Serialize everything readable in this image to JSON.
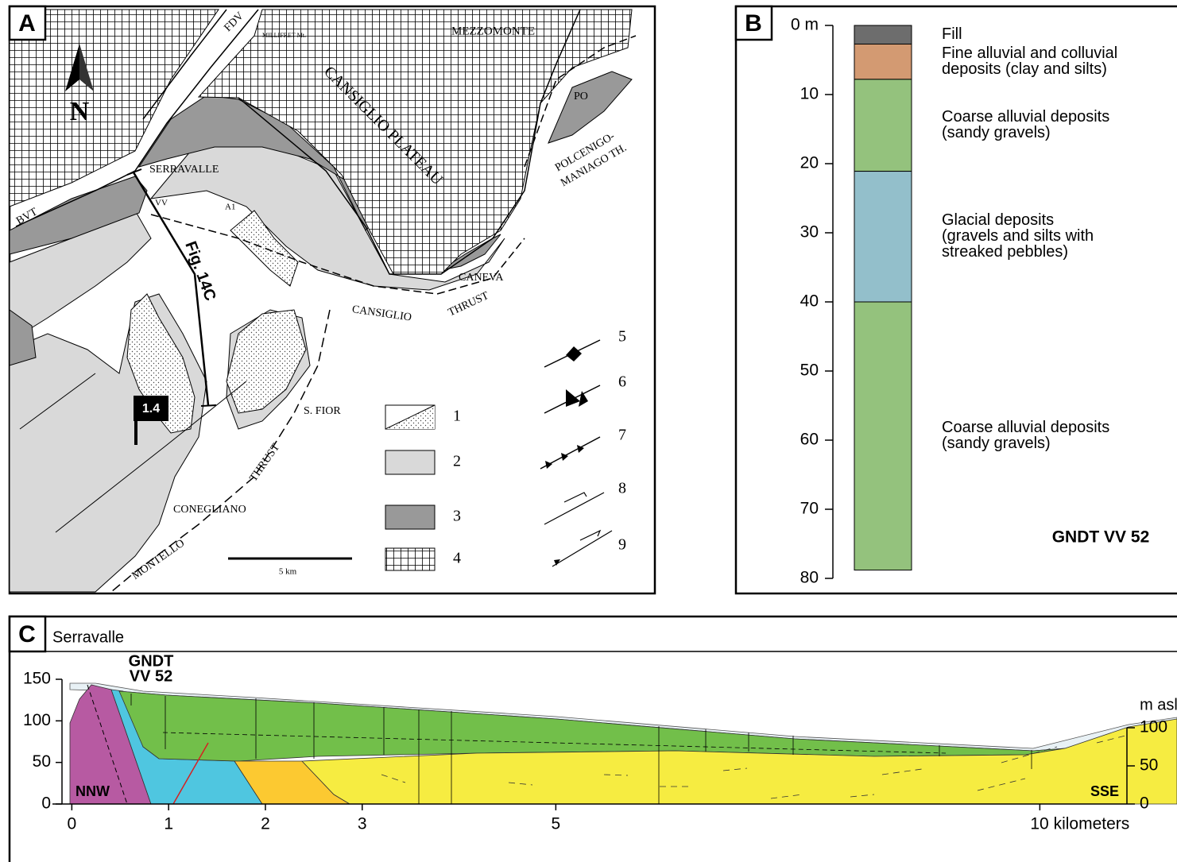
{
  "panel_a": {
    "letter": "A",
    "north": "N",
    "labels": {
      "fdv": "FDV",
      "millifret": "MILLIFRET Mt.",
      "mezzomonte": "MEZZOMONTE",
      "plateau": "CANSIGLIO PLATEAU",
      "po": "PO",
      "polcenigo_1": "POLCENIGO-",
      "polcenigo_2": "MANIAGO TH.",
      "serravalle": "SERRAVALLE",
      "vv": "VV",
      "a1": "A1",
      "bvt": "BVT",
      "fig": "Fig. 14C",
      "caneva": "CANEVA",
      "cansiglio": "CANSIGLIO",
      "thrust_1": "THRUST",
      "sfior": "S. FIOR",
      "thrust_2": "THRUST",
      "conegliano": "CONEGLIANO",
      "montello": "MONTELLO",
      "scale": "5 km",
      "site": "1.4"
    },
    "legend": [
      "1",
      "2",
      "3",
      "4",
      "5",
      "6",
      "7",
      "8",
      "9"
    ]
  },
  "panel_b": {
    "letter": "B",
    "depth_lim": [
      0,
      80
    ],
    "depth_ticks": [
      {
        "value": 0,
        "label": "0 m"
      },
      10,
      20,
      30,
      40,
      50,
      60,
      70,
      80
    ],
    "layers": [
      {
        "top": 0,
        "bottom": 2.7,
        "color": "#6d6d6d",
        "lines": [
          "Fill"
        ]
      },
      {
        "top": 2.7,
        "bottom": 7.8,
        "color": "#d39a72",
        "lines": [
          "Fine alluvial and colluvial",
          "deposits (clay and silts)"
        ]
      },
      {
        "top": 7.8,
        "bottom": 21.1,
        "color": "#94c27d",
        "lines": [
          "Coarse alluvial deposits",
          "(sandy gravels)"
        ]
      },
      {
        "top": 21.1,
        "bottom": 40,
        "color": "#93bfcb",
        "lines": [
          "Glacial deposits",
          "(gravels and silts with",
          "streaked pebbles)"
        ]
      },
      {
        "top": 40,
        "bottom": 78.8,
        "color": "#94c27d",
        "lines": [
          "Coarse alluvial deposits",
          "(sandy gravels)"
        ]
      }
    ],
    "well": "GNDT VV 52"
  },
  "panel_c": {
    "letter": "C",
    "place": "Serravalle",
    "well_lines": [
      "GNDT",
      "VV 52"
    ],
    "unit": "m asl",
    "left_end": "NNW",
    "right_end": "SSE",
    "xlim": [
      -0.2,
      10.9
    ],
    "xticks": [
      0,
      1,
      2,
      3,
      5,
      {
        "value": 10,
        "label": "10 kilometers"
      }
    ],
    "ylim": [
      0,
      150
    ],
    "yticks": [
      0,
      50,
      100,
      150
    ],
    "y2lim": [
      0,
      100
    ],
    "y2ticks": [
      0,
      50,
      100
    ]
  }
}
